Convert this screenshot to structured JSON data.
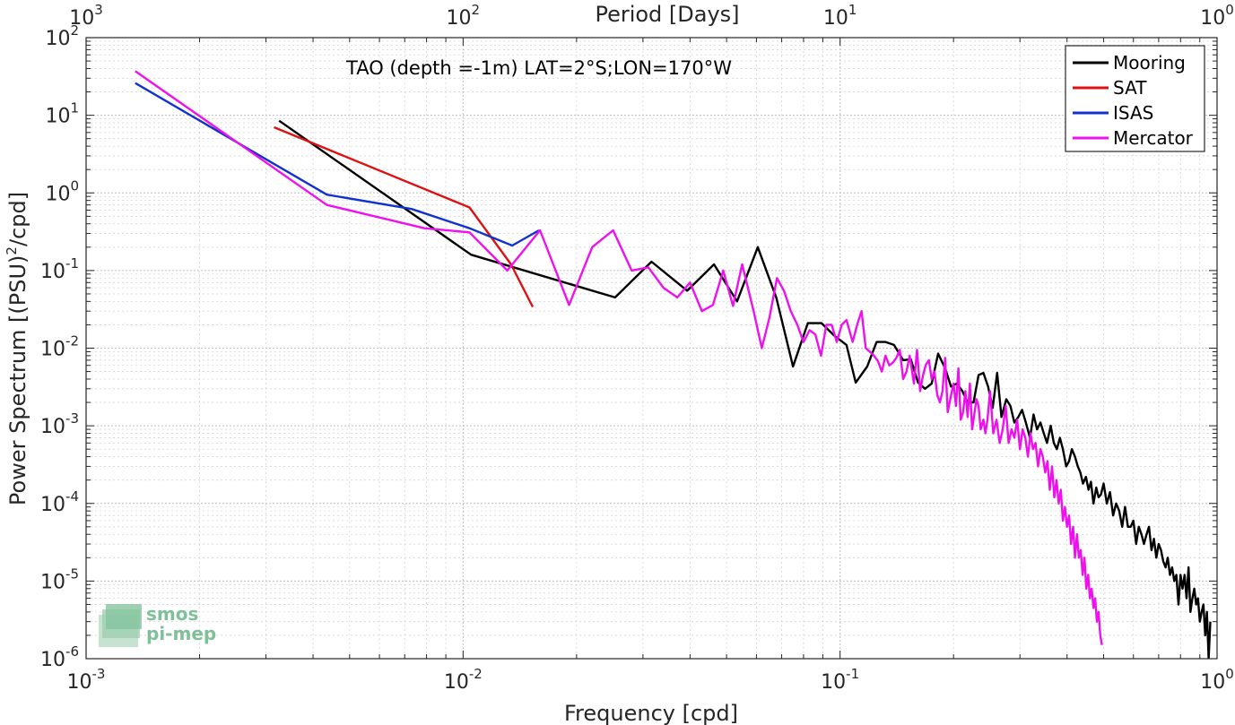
{
  "chart_data": {
    "type": "line",
    "x_scale": "log",
    "y_scale": "log",
    "xlim": [
      0.001,
      1
    ],
    "ylim": [
      1e-06,
      100
    ],
    "grid": true,
    "xlabel": "Frequency [cpd]",
    "ylabel": "Power Spectrum [(PSU)",
    "ylabel_sup": "2",
    "ylabel_tail": "/cpd]",
    "top_axis_label": "Period [Days]",
    "annotation": "TAO (depth =-1m) LAT=2°S;LON=170°W",
    "legend_position": "top-right",
    "x_ticks": [
      {
        "value": 0.001,
        "base": "10",
        "exp": "-3"
      },
      {
        "value": 0.01,
        "base": "10",
        "exp": "-2"
      },
      {
        "value": 0.1,
        "base": "10",
        "exp": "-1"
      },
      {
        "value": 1,
        "base": "10",
        "exp": "0"
      }
    ],
    "top_ticks": [
      {
        "value": 0.001,
        "base": "10",
        "exp": "3"
      },
      {
        "value": 0.01,
        "base": "10",
        "exp": "2"
      },
      {
        "value": 0.1,
        "base": "10",
        "exp": "1"
      },
      {
        "value": 1,
        "base": "10",
        "exp": "0"
      }
    ],
    "y_ticks": [
      {
        "value": 100,
        "base": "10",
        "exp": "2"
      },
      {
        "value": 10,
        "base": "10",
        "exp": "1"
      },
      {
        "value": 1,
        "base": "10",
        "exp": "0"
      },
      {
        "value": 0.1,
        "base": "10",
        "exp": "-1"
      },
      {
        "value": 0.01,
        "base": "10",
        "exp": "-2"
      },
      {
        "value": 0.001,
        "base": "10",
        "exp": "-3"
      },
      {
        "value": 0.0001,
        "base": "10",
        "exp": "-4"
      },
      {
        "value": 1e-05,
        "base": "10",
        "exp": "-5"
      },
      {
        "value": 1e-06,
        "base": "10",
        "exp": "-6"
      }
    ],
    "series": [
      {
        "name": "Mooring",
        "color": "#000000",
        "x": [
          0.00325,
          0.0105,
          0.0253,
          0.0316,
          0.0393,
          0.0463,
          0.0533,
          0.0605,
          0.0677,
          0.075,
          0.0821,
          0.0893,
          0.0965,
          0.104,
          0.11,
          0.118,
          0.125,
          0.132,
          0.139,
          0.147,
          0.154,
          0.161,
          0.168,
          0.175,
          0.182,
          0.19,
          0.197,
          0.204,
          0.211,
          0.218,
          0.226,
          0.233,
          0.24,
          0.247,
          0.254,
          0.261,
          0.268,
          0.276,
          0.283,
          0.29,
          0.297,
          0.304,
          0.311,
          0.319,
          0.326,
          0.333,
          0.34,
          0.347,
          0.354,
          0.362,
          0.369,
          0.376,
          0.383,
          0.39,
          0.398,
          0.405,
          0.412,
          0.42,
          0.427,
          0.434,
          0.441,
          0.449,
          0.456,
          0.463,
          0.47,
          0.478,
          0.485,
          0.492,
          0.5,
          0.51,
          0.52,
          0.53,
          0.54,
          0.55,
          0.56,
          0.57,
          0.58,
          0.59,
          0.6,
          0.61,
          0.62,
          0.63,
          0.64,
          0.65,
          0.66,
          0.67,
          0.68,
          0.69,
          0.7,
          0.71,
          0.72,
          0.73,
          0.74,
          0.75,
          0.76,
          0.77,
          0.78,
          0.79,
          0.8,
          0.81,
          0.82,
          0.83,
          0.84,
          0.85,
          0.86,
          0.87,
          0.88,
          0.89,
          0.9,
          0.91,
          0.92,
          0.93,
          0.94,
          0.95,
          0.96
        ],
        "y": [
          8.5,
          0.16,
          0.045,
          0.13,
          0.055,
          0.12,
          0.04,
          0.2,
          0.045,
          0.0058,
          0.021,
          0.021,
          0.0145,
          0.011,
          0.0036,
          0.0058,
          0.012,
          0.012,
          0.011,
          0.007,
          0.0072,
          0.0036,
          0.003,
          0.0035,
          0.0085,
          0.0055,
          0.0032,
          0.0035,
          0.0028,
          0.002,
          0.002,
          0.0045,
          0.0048,
          0.0032,
          0.0017,
          0.0048,
          0.0013,
          0.0022,
          0.0018,
          0.0011,
          0.0013,
          0.0016,
          0.0011,
          0.0007,
          0.0014,
          0.0009,
          0.0011,
          0.0008,
          0.0006,
          0.001,
          0.0006,
          0.0005,
          0.0007,
          0.0005,
          0.0003,
          0.00035,
          0.0005,
          0.0004,
          0.0003,
          0.00025,
          0.00018,
          0.00022,
          0.00015,
          0.00019,
          0.0001,
          0.00016,
          0.00012,
          0.00013,
          0.00018,
          0.0001,
          0.00014,
          7e-05,
          0.0001,
          8e-05,
          5e-05,
          9e-05,
          5e-05,
          5e-05,
          6e-05,
          3e-05,
          5e-05,
          4e-05,
          3e-05,
          4e-05,
          5e-05,
          2.5e-05,
          3.5e-05,
          2e-05,
          3e-05,
          2.5e-05,
          1.8e-05,
          1.5e-05,
          2e-05,
          1.2e-05,
          1.5e-05,
          1e-05,
          1.2e-05,
          5e-06,
          1.2e-05,
          8e-06,
          1.2e-05,
          6e-06,
          1.5e-05,
          4e-06,
          6e-06,
          8e-06,
          5e-06,
          6e-06,
          3e-06,
          4e-06,
          5e-06,
          2e-06,
          4e-06,
          1e-06,
          3e-06
        ]
      },
      {
        "name": "SAT",
        "color": "#dd1111",
        "x": [
          0.00315,
          0.0104,
          0.0134,
          0.0153
        ],
        "y": [
          7.0,
          0.65,
          0.12,
          0.034
        ]
      },
      {
        "name": "ISAS",
        "color": "#1133cc",
        "x": [
          0.00135,
          0.00435,
          0.0073,
          0.0104,
          0.0135,
          0.0159
        ],
        "y": [
          26,
          0.95,
          0.62,
          0.35,
          0.21,
          0.33
        ]
      },
      {
        "name": "Mercator",
        "color": "#ee11ee",
        "x": [
          0.00135,
          0.00435,
          0.0079,
          0.0104,
          0.0131,
          0.016,
          0.0191,
          0.022,
          0.025,
          0.028,
          0.031,
          0.034,
          0.037,
          0.04,
          0.043,
          0.046,
          0.049,
          0.052,
          0.055,
          0.059,
          0.062,
          0.065,
          0.068,
          0.071,
          0.074,
          0.077,
          0.08,
          0.083,
          0.086,
          0.089,
          0.092,
          0.095,
          0.098,
          0.101,
          0.104,
          0.108,
          0.111,
          0.114,
          0.117,
          0.12,
          0.123,
          0.126,
          0.129,
          0.132,
          0.135,
          0.138,
          0.141,
          0.144,
          0.147,
          0.15,
          0.153,
          0.157,
          0.16,
          0.163,
          0.166,
          0.169,
          0.172,
          0.175,
          0.178,
          0.181,
          0.184,
          0.187,
          0.19,
          0.193,
          0.196,
          0.2,
          0.203,
          0.206,
          0.209,
          0.212,
          0.215,
          0.218,
          0.221,
          0.224,
          0.227,
          0.23,
          0.233,
          0.236,
          0.24,
          0.243,
          0.246,
          0.25,
          0.255,
          0.26,
          0.265,
          0.27,
          0.275,
          0.28,
          0.285,
          0.29,
          0.295,
          0.3,
          0.305,
          0.31,
          0.315,
          0.32,
          0.325,
          0.33,
          0.335,
          0.34,
          0.345,
          0.35,
          0.355,
          0.36,
          0.365,
          0.37,
          0.375,
          0.38,
          0.385,
          0.39,
          0.395,
          0.4,
          0.405,
          0.41,
          0.415,
          0.42,
          0.425,
          0.43,
          0.435,
          0.44,
          0.445,
          0.45,
          0.455,
          0.46,
          0.465,
          0.47,
          0.475,
          0.48,
          0.485,
          0.49,
          0.495
        ],
        "y": [
          37,
          0.7,
          0.35,
          0.31,
          0.1,
          0.33,
          0.036,
          0.2,
          0.33,
          0.1,
          0.11,
          0.06,
          0.045,
          0.07,
          0.03,
          0.036,
          0.1,
          0.035,
          0.12,
          0.03,
          0.01,
          0.025,
          0.08,
          0.055,
          0.03,
          0.02,
          0.012,
          0.017,
          0.015,
          0.008,
          0.02,
          0.02,
          0.012,
          0.02,
          0.023,
          0.012,
          0.02,
          0.03,
          0.01,
          0.009,
          0.008,
          0.0068,
          0.005,
          0.008,
          0.006,
          0.0065,
          0.0075,
          0.0095,
          0.004,
          0.005,
          0.008,
          0.0035,
          0.0095,
          0.0028,
          0.0045,
          0.0062,
          0.007,
          0.004,
          0.005,
          0.0025,
          0.002,
          0.0028,
          0.0075,
          0.0015,
          0.0022,
          0.0035,
          0.0018,
          0.0055,
          0.0012,
          0.0015,
          0.0028,
          0.0013,
          0.0035,
          0.0009,
          0.0014,
          0.0022,
          0.0018,
          0.0009,
          0.0012,
          0.0008,
          0.0012,
          0.0028,
          0.0008,
          0.0012,
          0.0006,
          0.0009,
          0.0018,
          0.0006,
          0.0009,
          0.0007,
          0.0012,
          0.0005,
          0.0009,
          0.0007,
          0.0004,
          0.0008,
          0.0005,
          0.0006,
          0.0003,
          0.0005,
          0.0004,
          0.00025,
          0.00035,
          0.00015,
          0.0003,
          0.00012,
          0.0002,
          0.0001,
          0.00015,
          6e-05,
          9e-05,
          5e-05,
          7e-05,
          3e-05,
          5e-05,
          2e-05,
          4e-05,
          2e-05,
          2.5e-05,
          1.2e-05,
          2e-05,
          8e-06,
          1.2e-05,
          6e-06,
          8e-06,
          4.5e-06,
          6e-06,
          3e-06,
          4e-06,
          2e-06,
          1.5e-06
        ]
      }
    ]
  },
  "logo": {
    "line1": "smos",
    "line2": "pi-mep"
  }
}
